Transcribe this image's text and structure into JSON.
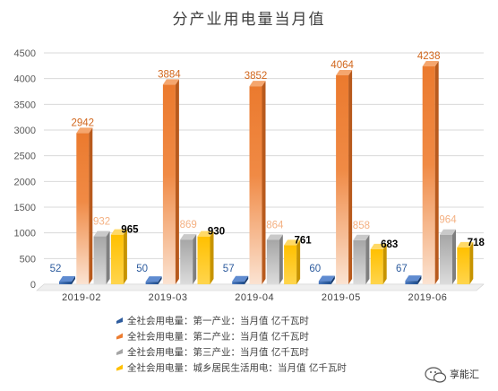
{
  "chart_data": {
    "type": "bar",
    "title": "分产业用电量当月值",
    "categories": [
      "2019-02",
      "2019-03",
      "2019-04",
      "2019-05",
      "2019-06"
    ],
    "ylim": [
      0,
      4500
    ],
    "yticks": [
      0,
      500,
      1000,
      1500,
      2000,
      2500,
      3000,
      3500,
      4000,
      4500
    ],
    "grid": true,
    "legend_position": "bottom",
    "series": [
      {
        "name": "全社会用电量：第一产业：当月值 亿千瓦时",
        "values": [
          52,
          50,
          57,
          60,
          67
        ],
        "color": "#2E5C9E",
        "label_color": "#2E5C9E"
      },
      {
        "name": "全社会用电量：第二产业：当月值 亿千瓦时",
        "values": [
          2942,
          3884,
          3852,
          4064,
          4238
        ],
        "color": "#ED7D31",
        "label_color": "#D1661C"
      },
      {
        "name": "全社会用电量：第三产业：当月值 亿千瓦时",
        "values": [
          932,
          869,
          864,
          858,
          964
        ],
        "color": "#A5A5A5",
        "label_color": "#F4B183"
      },
      {
        "name": "全社会用电量：城乡居民生活用电：当月值 亿千瓦时",
        "values": [
          965,
          930,
          761,
          683,
          718
        ],
        "color": "#FFC000",
        "label_color": "#000000"
      }
    ]
  },
  "watermark": {
    "icon": "wechat-icon",
    "text": "享能汇"
  }
}
